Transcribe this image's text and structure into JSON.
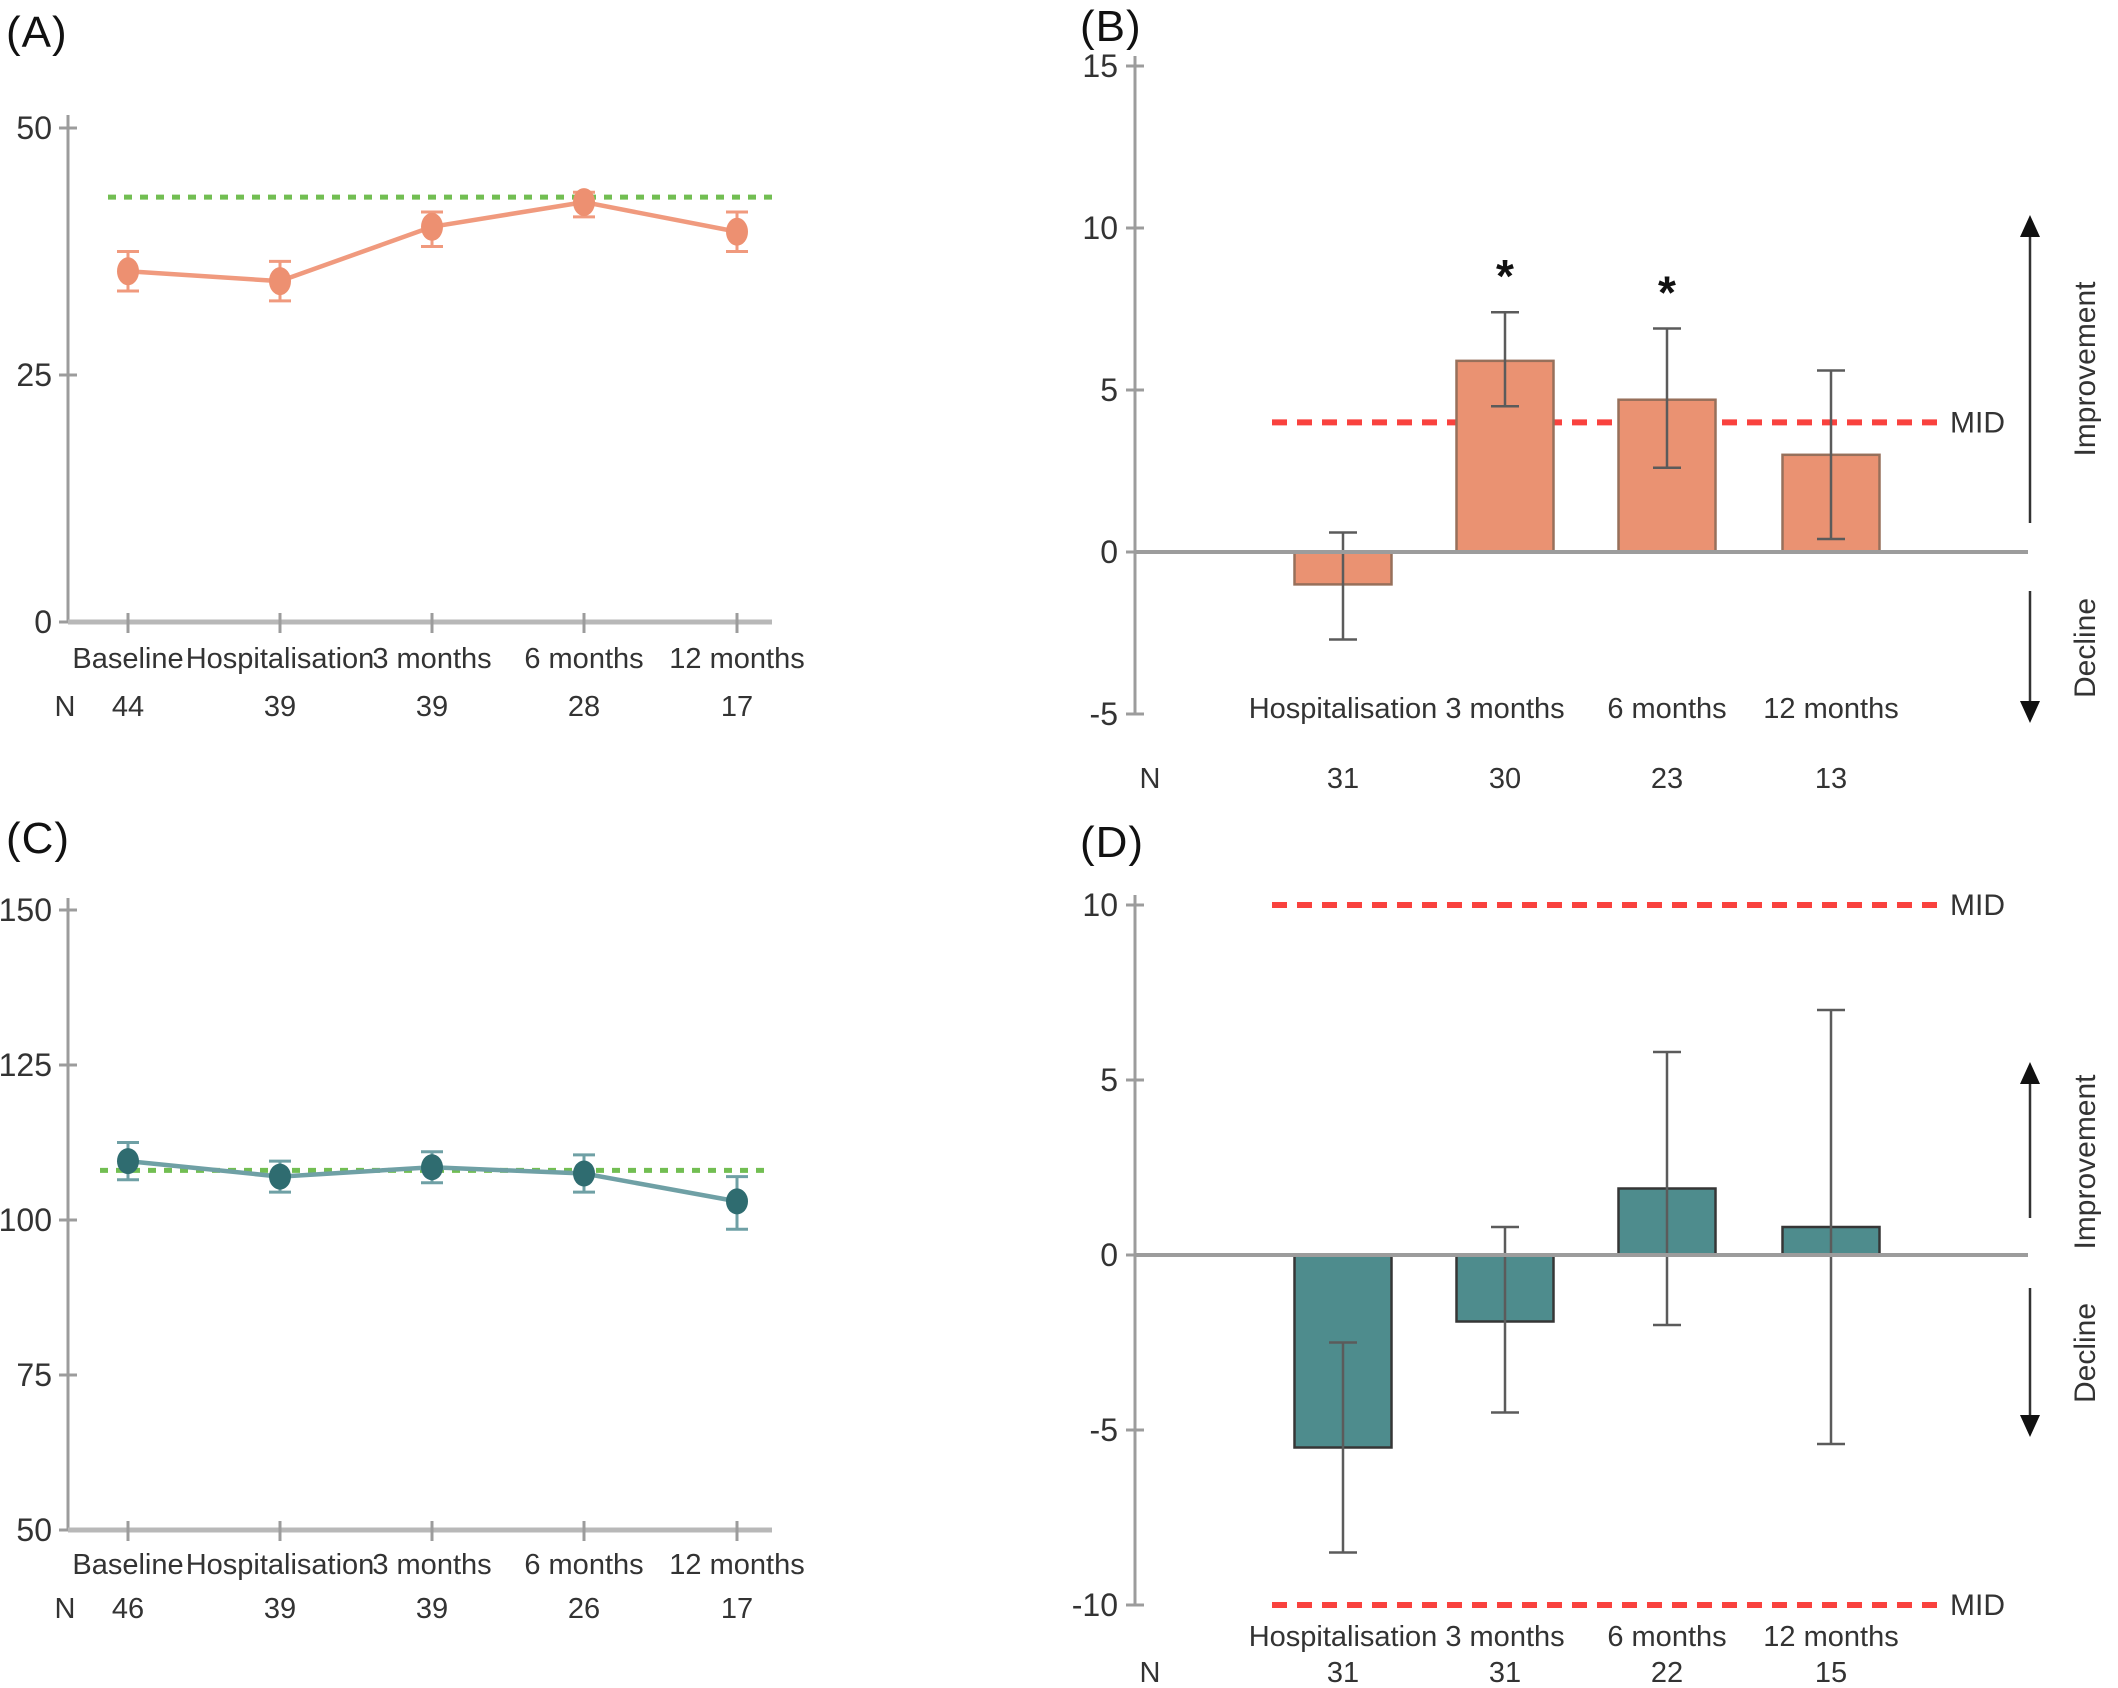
{
  "figure_title": "",
  "annotations": {
    "mid_label": "MID",
    "improvement_label": "Improvement",
    "decline_label": "Decline",
    "n_label": "N",
    "significance_marker": "*"
  },
  "colors": {
    "salmon_line": "#F09A7E",
    "salmon_marker": "#ED9071",
    "salmon_bar_fill": "#EA9272",
    "salmon_bar_border": "#97705B",
    "teal_line": "#6FA0A5",
    "teal_marker": "#2F6C70",
    "teal_bar_fill": "#4E8C8D",
    "teal_bar_border": "#363636",
    "reference_green": "#72BE52",
    "mid_red": "#F9423E",
    "axis_gray": "#9C9C9C",
    "x_axis_light": "#B8B8B8",
    "error_bar_gray": "#5B5B5B",
    "text_color": "#333333"
  },
  "chart_data": [
    {
      "id": "A",
      "panel_label": "(A)",
      "type": "line",
      "title": "",
      "xlabel": "",
      "ylabel": "",
      "categories": [
        "Baseline",
        "Hospitalisation",
        "3 months",
        "6 months",
        "12 months"
      ],
      "values": [
        35.5,
        34.5,
        40,
        42.5,
        39.5
      ],
      "error_low": [
        33.5,
        32.5,
        38,
        41,
        37.5
      ],
      "error_high": [
        37.5,
        36.5,
        41.5,
        43.5,
        41.5
      ],
      "reference_value": 43,
      "ylim": [
        0,
        50
      ],
      "yticks": [
        50,
        25,
        0
      ],
      "grid": false,
      "n_row": {
        "label": "N",
        "values": [
          "44",
          "39",
          "39",
          "28",
          "17"
        ]
      },
      "series_color": "#F09A7E",
      "marker_color": "#ED9071",
      "reference_color": "#72BE52"
    },
    {
      "id": "B",
      "panel_label": "(B)",
      "type": "bar",
      "title": "",
      "xlabel": "",
      "ylabel": "",
      "categories": [
        "Hospitalisation",
        "3 months",
        "6 months",
        "12 months"
      ],
      "values": [
        -1.0,
        5.9,
        4.7,
        3.0
      ],
      "error_low": [
        -2.7,
        4.5,
        2.6,
        0.4
      ],
      "error_high": [
        0.6,
        7.4,
        6.9,
        5.6
      ],
      "significance": [
        "",
        "*",
        "*",
        ""
      ],
      "mid_lines": [
        4
      ],
      "mid_label": "MID",
      "ylim": [
        -5,
        15
      ],
      "yticks": [
        15,
        10,
        5,
        0,
        -5
      ],
      "grid": false,
      "n_row": {
        "label": "N",
        "values": [
          "31",
          "30",
          "23",
          "13"
        ]
      },
      "bar_color": "#EA9272",
      "bar_border": "#97705B",
      "mid_color": "#F9423E",
      "right_labels": {
        "improvement": "Improvement",
        "decline": "Decline"
      }
    },
    {
      "id": "C",
      "panel_label": "(C)",
      "type": "line",
      "title": "",
      "xlabel": "",
      "ylabel": "",
      "categories": [
        "Baseline",
        "Hospitalisation",
        "3 months",
        "6 months",
        "12 months"
      ],
      "values": [
        109.5,
        107,
        108.5,
        107.5,
        103
      ],
      "error_low": [
        106.5,
        104.5,
        106,
        104.5,
        98.5
      ],
      "error_high": [
        112.5,
        109.5,
        111,
        110.5,
        107
      ],
      "reference_value": 108,
      "ylim": [
        50,
        150
      ],
      "yticks": [
        150,
        125,
        100,
        75,
        50
      ],
      "grid": false,
      "n_row": {
        "label": "N",
        "values": [
          "46",
          "39",
          "39",
          "26",
          "17"
        ]
      },
      "series_color": "#6FA0A5",
      "marker_color": "#2F6C70",
      "reference_color": "#72BE52"
    },
    {
      "id": "D",
      "panel_label": "(D)",
      "type": "bar",
      "title": "",
      "xlabel": "",
      "ylabel": "",
      "categories": [
        "Hospitalisation",
        "3 months",
        "6 months",
        "12 months"
      ],
      "values": [
        -5.5,
        -1.9,
        1.9,
        0.8
      ],
      "error_low": [
        -8.5,
        -4.5,
        -2.0,
        -5.4
      ],
      "error_high": [
        -2.5,
        0.8,
        5.8,
        7.0
      ],
      "significance": [
        "",
        "",
        "",
        ""
      ],
      "mid_lines": [
        10,
        -10
      ],
      "mid_label": "MID",
      "ylim": [
        -10,
        10
      ],
      "yticks": [
        10,
        5,
        0,
        -5,
        -10
      ],
      "grid": false,
      "n_row": {
        "label": "N",
        "values": [
          "31",
          "31",
          "22",
          "15"
        ]
      },
      "bar_color": "#4E8C8D",
      "bar_border": "#363636",
      "mid_color": "#F9423E",
      "right_labels": {
        "improvement": "Improvement",
        "decline": "Decline"
      }
    }
  ]
}
